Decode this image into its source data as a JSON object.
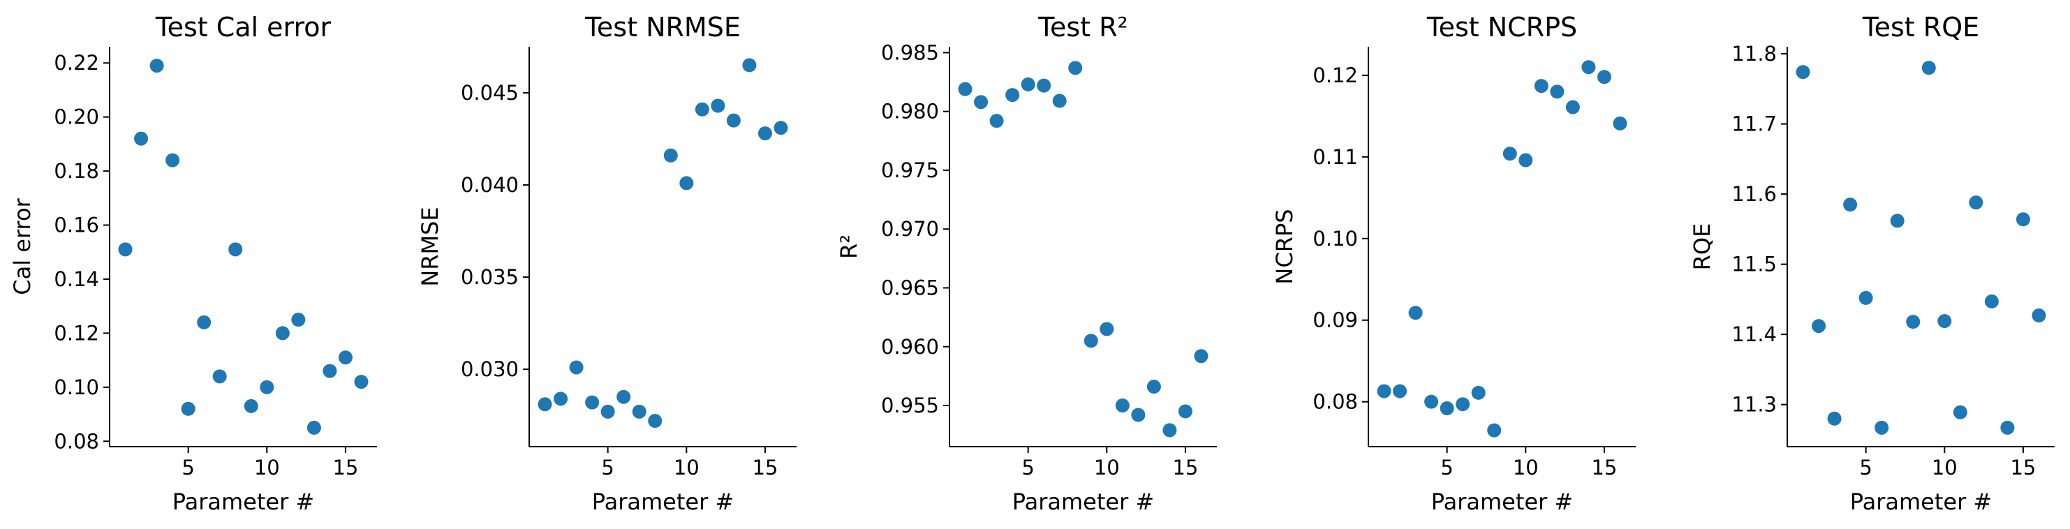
{
  "figure": {
    "marker_color": "#1f77b4",
    "background": "#ffffff"
  },
  "chart_data": [
    {
      "type": "scatter",
      "title": "Test Cal error",
      "xlabel": "Parameter #",
      "ylabel": "Cal error",
      "xlim": [
        0,
        17
      ],
      "ylim": [
        0.078,
        0.226
      ],
      "xticks": [
        5,
        10,
        15
      ],
      "xtick_labels": [
        "5",
        "10",
        "15"
      ],
      "yticks": [
        0.08,
        0.1,
        0.12,
        0.14,
        0.16,
        0.18,
        0.2,
        0.22
      ],
      "ytick_labels": [
        "0.08",
        "0.10",
        "0.12",
        "0.14",
        "0.16",
        "0.18",
        "0.20",
        "0.22"
      ],
      "grid": false,
      "x": [
        1,
        2,
        3,
        4,
        5,
        6,
        7,
        8,
        9,
        10,
        11,
        12,
        13,
        14,
        15,
        16
      ],
      "y": [
        0.151,
        0.192,
        0.219,
        0.184,
        0.092,
        0.124,
        0.104,
        0.151,
        0.093,
        0.1,
        0.12,
        0.125,
        0.085,
        0.106,
        0.111,
        0.102
      ]
    },
    {
      "type": "scatter",
      "title": "Test NRMSE",
      "xlabel": "Parameter #",
      "ylabel": "NRMSE",
      "xlim": [
        0,
        17
      ],
      "ylim": [
        0.0258,
        0.0475
      ],
      "xticks": [
        5,
        10,
        15
      ],
      "xtick_labels": [
        "5",
        "10",
        "15"
      ],
      "yticks": [
        0.03,
        0.035,
        0.04,
        0.045
      ],
      "ytick_labels": [
        "0.030",
        "0.035",
        "0.040",
        "0.045"
      ],
      "grid": false,
      "x": [
        1,
        2,
        3,
        4,
        5,
        6,
        7,
        8,
        9,
        10,
        11,
        12,
        13,
        14,
        15,
        16
      ],
      "y": [
        0.0281,
        0.0284,
        0.0301,
        0.0282,
        0.0277,
        0.0285,
        0.0277,
        0.0272,
        0.0416,
        0.0401,
        0.0441,
        0.0443,
        0.0435,
        0.0465,
        0.0428,
        0.0431
      ]
    },
    {
      "type": "scatter",
      "title": "Test R²",
      "xlabel": "Parameter #",
      "ylabel": "R²",
      "xlim": [
        0,
        17
      ],
      "ylim": [
        0.9515,
        0.9855
      ],
      "xticks": [
        5,
        10,
        15
      ],
      "xtick_labels": [
        "5",
        "10",
        "15"
      ],
      "yticks": [
        0.955,
        0.96,
        0.965,
        0.97,
        0.975,
        0.98,
        0.985
      ],
      "ytick_labels": [
        "0.955",
        "0.960",
        "0.965",
        "0.970",
        "0.975",
        "0.980",
        "0.985"
      ],
      "grid": false,
      "x": [
        1,
        2,
        3,
        4,
        5,
        6,
        7,
        8,
        9,
        10,
        11,
        12,
        13,
        14,
        15,
        16
      ],
      "y": [
        0.9819,
        0.9808,
        0.9792,
        0.9814,
        0.9823,
        0.9822,
        0.9809,
        0.9837,
        0.9605,
        0.9615,
        0.955,
        0.9542,
        0.9566,
        0.9529,
        0.9545,
        0.9592
      ]
    },
    {
      "type": "scatter",
      "title": "Test NCRPS",
      "xlabel": "Parameter #",
      "ylabel": "NCRPS",
      "xlim": [
        0,
        17
      ],
      "ylim": [
        0.0745,
        0.1235
      ],
      "xticks": [
        5,
        10,
        15
      ],
      "xtick_labels": [
        "5",
        "10",
        "15"
      ],
      "yticks": [
        0.08,
        0.09,
        0.1,
        0.11,
        0.12
      ],
      "ytick_labels": [
        "0.08",
        "0.09",
        "0.10",
        "0.11",
        "0.12"
      ],
      "grid": false,
      "x": [
        1,
        2,
        3,
        4,
        5,
        6,
        7,
        8,
        9,
        10,
        11,
        12,
        13,
        14,
        15,
        16
      ],
      "y": [
        0.0813,
        0.0813,
        0.0909,
        0.08,
        0.0792,
        0.0797,
        0.0811,
        0.0765,
        0.1104,
        0.1096,
        0.1187,
        0.118,
        0.1161,
        0.121,
        0.1198,
        0.1141
      ]
    },
    {
      "type": "scatter",
      "title": "Test RQE",
      "xlabel": "Parameter #",
      "ylabel": "RQE",
      "xlim": [
        0,
        17
      ],
      "ylim": [
        11.24,
        11.81
      ],
      "xticks": [
        5,
        10,
        15
      ],
      "xtick_labels": [
        "5",
        "10",
        "15"
      ],
      "yticks": [
        11.3,
        11.4,
        11.5,
        11.6,
        11.7,
        11.8
      ],
      "ytick_labels": [
        "11.3",
        "11.4",
        "11.5",
        "11.6",
        "11.7",
        "11.8"
      ],
      "grid": false,
      "x": [
        1,
        2,
        3,
        4,
        5,
        6,
        7,
        8,
        9,
        10,
        11,
        12,
        13,
        14,
        15,
        16
      ],
      "y": [
        11.774,
        11.412,
        11.28,
        11.585,
        11.452,
        11.267,
        11.562,
        11.418,
        11.78,
        11.419,
        11.289,
        11.588,
        11.447,
        11.267,
        11.564,
        11.427
      ]
    }
  ]
}
